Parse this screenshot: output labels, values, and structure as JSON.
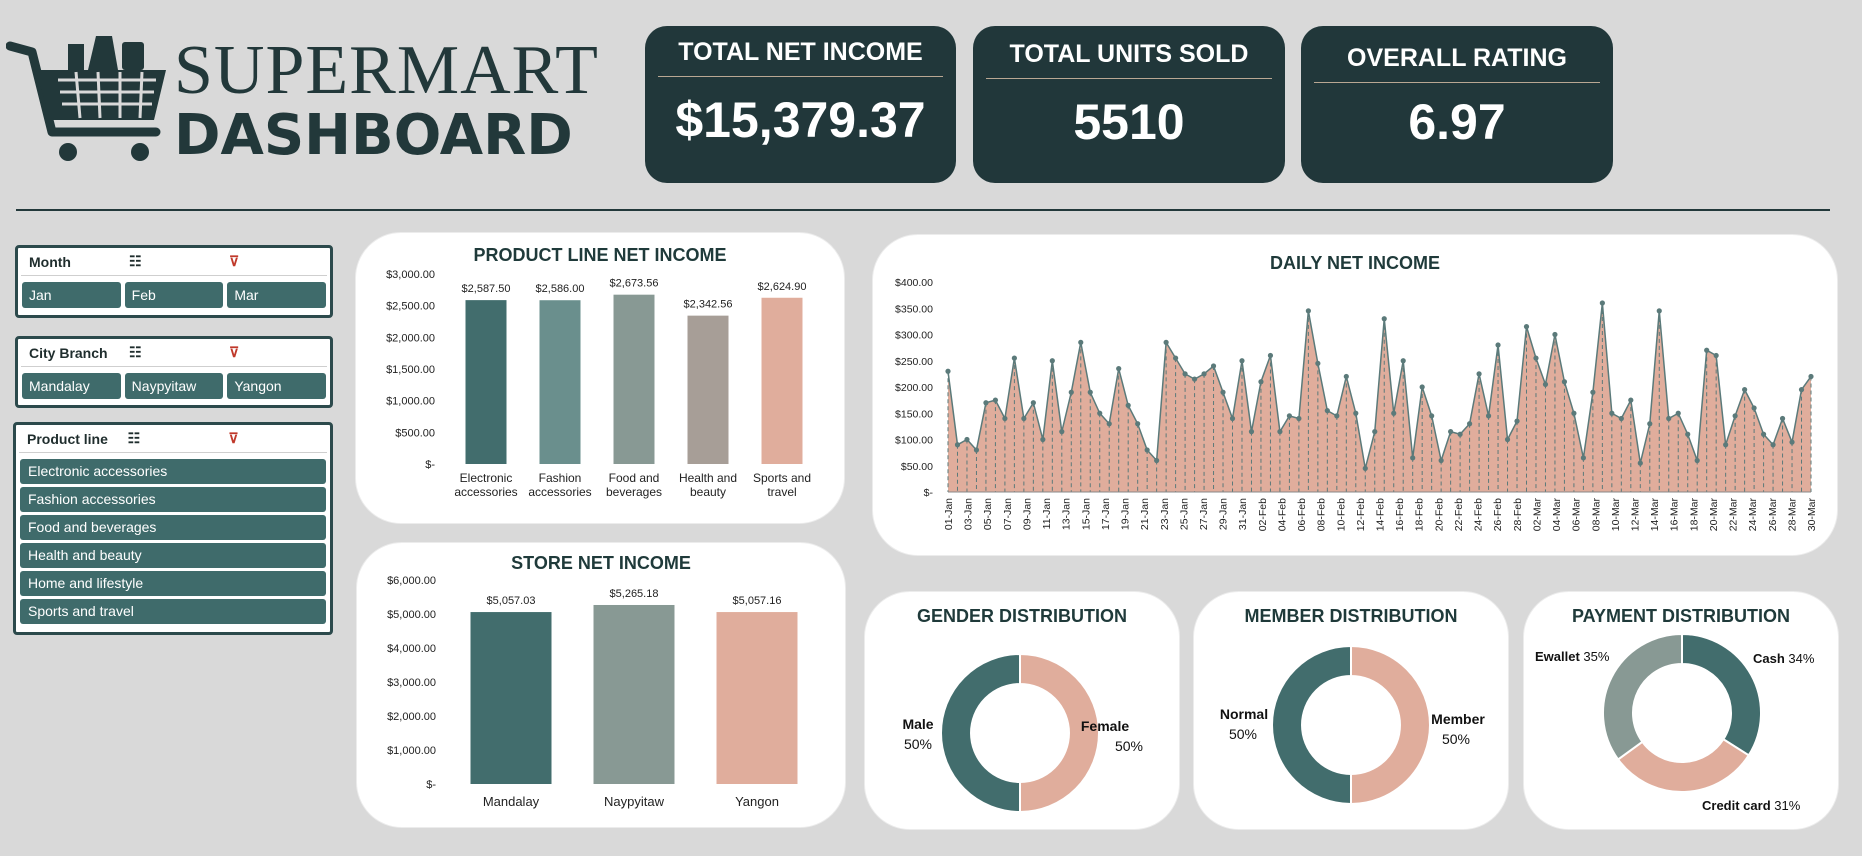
{
  "header": {
    "title_line1": "SUPERMART",
    "title_line2": "DASHBOARD"
  },
  "kpis": [
    {
      "title": "TOTAL NET INCOME",
      "value": "$15,379.37"
    },
    {
      "title": "TOTAL UNITS SOLD",
      "value": "5510"
    },
    {
      "title": "OVERALL RATING",
      "value": "6.97"
    }
  ],
  "slicers": {
    "month": {
      "title": "Month",
      "items": [
        "Jan",
        "Feb",
        "Mar"
      ]
    },
    "city": {
      "title": "City Branch",
      "items": [
        "Mandalay",
        "Naypyitaw",
        "Yangon"
      ]
    },
    "product": {
      "title": "Product line",
      "items": [
        "Electronic accessories",
        "Fashion accessories",
        "Food and beverages",
        "Health and beauty",
        "Home and lifestyle",
        "Sports and travel"
      ]
    }
  },
  "colors": {
    "dark_teal": "#21373a",
    "teal": "#426d6d",
    "teal2": "#6a8f8d",
    "gray_green": "#889994",
    "taupe": "#a79e97",
    "salmon": "#e0ad9c"
  },
  "chart_data": [
    {
      "type": "bar",
      "title": "PRODUCT LINE NET INCOME",
      "categories": [
        "Electronic accessories",
        "Fashion accessories",
        "Food and beverages",
        "Health and beauty",
        "Sports and travel"
      ],
      "category_lines": [
        [
          "Electronic",
          "accessories"
        ],
        [
          "Fashion",
          "accessories"
        ],
        [
          "Food and",
          "beverages"
        ],
        [
          "Health and",
          "beauty"
        ],
        [
          "Sports and",
          "travel"
        ]
      ],
      "values": [
        2587.5,
        2586.0,
        2673.56,
        2342.56,
        2624.9
      ],
      "labels": [
        "$2,587.50",
        "$2,586.00",
        "$2,673.56",
        "$2,342.56",
        "$2,624.90"
      ],
      "yticks": [
        "$-",
        "$500.00",
        "$1,000.00",
        "$1,500.00",
        "$2,000.00",
        "$2,500.00",
        "$3,000.00"
      ],
      "ylim": [
        0,
        3000
      ],
      "colors": [
        "#426d6d",
        "#6a8f8d",
        "#889994",
        "#a79e97",
        "#e0ad9c"
      ]
    },
    {
      "type": "bar",
      "title": "STORE NET INCOME",
      "categories": [
        "Mandalay",
        "Naypyitaw",
        "Yangon"
      ],
      "values": [
        5057.03,
        5265.18,
        5057.16
      ],
      "labels": [
        "$5,057.03",
        "$5,265.18",
        "$5,057.16"
      ],
      "yticks": [
        "$-",
        "$1,000.00",
        "$2,000.00",
        "$3,000.00",
        "$4,000.00",
        "$5,000.00",
        "$6,000.00"
      ],
      "ylim": [
        0,
        6000
      ],
      "colors": [
        "#426d6d",
        "#889994",
        "#e0ad9c"
      ]
    },
    {
      "type": "area",
      "title": "DAILY NET INCOME",
      "yticks": [
        "$-",
        "$50.00",
        "$100.00",
        "$150.00",
        "$200.00",
        "$250.00",
        "$300.00",
        "$350.00",
        "$400.00"
      ],
      "ylim": [
        0,
        400
      ],
      "x_tick_labels": [
        "01-Jan",
        "03-Jan",
        "05-Jan",
        "07-Jan",
        "09-Jan",
        "11-Jan",
        "13-Jan",
        "15-Jan",
        "17-Jan",
        "19-Jan",
        "21-Jan",
        "23-Jan",
        "25-Jan",
        "27-Jan",
        "29-Jan",
        "31-Jan",
        "02-Feb",
        "04-Feb",
        "06-Feb",
        "08-Feb",
        "10-Feb",
        "12-Feb",
        "14-Feb",
        "16-Feb",
        "18-Feb",
        "20-Feb",
        "22-Feb",
        "24-Feb",
        "26-Feb",
        "28-Feb",
        "02-Mar",
        "04-Mar",
        "06-Mar",
        "08-Mar",
        "10-Mar",
        "12-Mar",
        "14-Mar",
        "16-Mar",
        "18-Mar",
        "20-Mar",
        "22-Mar",
        "24-Mar",
        "26-Mar",
        "28-Mar",
        "30-Mar"
      ],
      "values": [
        230,
        90,
        100,
        80,
        170,
        175,
        140,
        255,
        140,
        170,
        100,
        250,
        115,
        190,
        285,
        190,
        150,
        130,
        235,
        165,
        130,
        80,
        60,
        285,
        255,
        225,
        215,
        225,
        240,
        190,
        140,
        250,
        115,
        210,
        260,
        115,
        145,
        140,
        345,
        245,
        155,
        145,
        220,
        150,
        45,
        115,
        330,
        150,
        250,
        65,
        200,
        145,
        60,
        115,
        110,
        130,
        225,
        145,
        280,
        100,
        135,
        315,
        255,
        205,
        300,
        210,
        150,
        65,
        190,
        360,
        150,
        140,
        175,
        55,
        130,
        345,
        140,
        150,
        110,
        60,
        270,
        260,
        90,
        145,
        195,
        160,
        110,
        90,
        140,
        95,
        195,
        220
      ],
      "colors": {
        "fill": "#e0ad9c",
        "line": "#5b7a7a"
      }
    },
    {
      "type": "pie",
      "title": "GENDER DISTRIBUTION",
      "slices": [
        {
          "label": "Female",
          "pct": "50%",
          "value": 50,
          "color": "#e0ad9c"
        },
        {
          "label": "Male",
          "pct": "50%",
          "value": 50,
          "color": "#426d6d"
        }
      ]
    },
    {
      "type": "pie",
      "title": "MEMBER DISTRIBUTION",
      "slices": [
        {
          "label": "Member",
          "pct": "50%",
          "value": 50,
          "color": "#e0ad9c"
        },
        {
          "label": "Normal",
          "pct": "50%",
          "value": 50,
          "color": "#426d6d"
        }
      ]
    },
    {
      "type": "pie",
      "title": "PAYMENT DISTRIBUTION",
      "slices": [
        {
          "label": "Cash",
          "pct": "34%",
          "value": 34,
          "color": "#426d6d"
        },
        {
          "label": "Credit card",
          "pct": "31%",
          "value": 31,
          "color": "#e0ad9c"
        },
        {
          "label": "Ewallet",
          "pct": "35%",
          "value": 35,
          "color": "#889994"
        }
      ]
    }
  ]
}
